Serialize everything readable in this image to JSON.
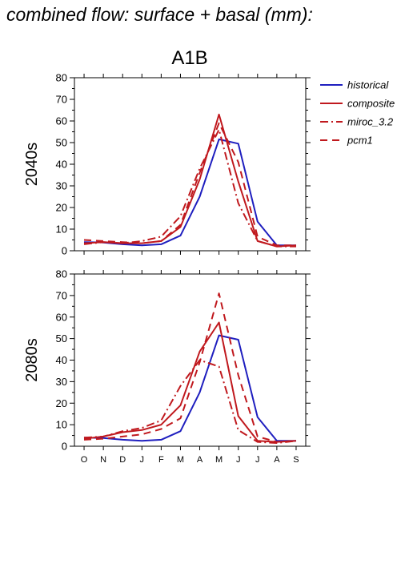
{
  "title": "combined flow: surface + basal (mm):",
  "scenario": "A1B",
  "colors": {
    "historical": "#1f1fbf",
    "model": "#c0191e",
    "axis": "#000000"
  },
  "legend": [
    {
      "key": "historical",
      "label": "historical",
      "color": "#1f1fbf",
      "dash": ""
    },
    {
      "key": "composite",
      "label": "composite",
      "color": "#c0191e",
      "dash": ""
    },
    {
      "key": "miroc",
      "label": "miroc_3.2",
      "color": "#c0191e",
      "dash": "10 4 2 4"
    },
    {
      "key": "pcm1",
      "label": "pcm1",
      "color": "#c0191e",
      "dash": "9 6"
    }
  ],
  "chart_data": [
    {
      "type": "line",
      "panel_label": "2040s",
      "categories": [
        "O",
        "N",
        "D",
        "J",
        "F",
        "M",
        "A",
        "M",
        "J",
        "J",
        "A",
        "S"
      ],
      "yticks": [
        0,
        10,
        20,
        30,
        40,
        50,
        60,
        70,
        80
      ],
      "ylim": [
        0,
        80
      ],
      "series": [
        {
          "name": "historical",
          "values": [
            4,
            3.8,
            3,
            2.5,
            3,
            7,
            25,
            51.5,
            49.5,
            13.5,
            2.5,
            2.5
          ]
        },
        {
          "name": "composite",
          "values": [
            3.5,
            4,
            3.5,
            3.5,
            4.5,
            11,
            33,
            63,
            32,
            4.5,
            2,
            2.5
          ]
        },
        {
          "name": "miroc_3.2",
          "values": [
            3,
            4,
            3.5,
            4.5,
            6.5,
            16,
            38,
            56,
            22,
            4.5,
            2,
            2
          ]
        },
        {
          "name": "pcm1",
          "values": [
            5,
            4.5,
            4,
            3.5,
            4.5,
            12,
            36,
            59,
            41,
            6.5,
            2.5,
            2.5
          ]
        }
      ]
    },
    {
      "type": "line",
      "panel_label": "2080s",
      "categories": [
        "O",
        "N",
        "D",
        "J",
        "F",
        "M",
        "A",
        "M",
        "J",
        "J",
        "A",
        "S"
      ],
      "yticks": [
        0,
        10,
        20,
        30,
        40,
        50,
        60,
        70,
        80
      ],
      "ylim": [
        0,
        80
      ],
      "series": [
        {
          "name": "historical",
          "values": [
            4,
            3.8,
            3,
            2.5,
            3,
            7,
            25,
            51.5,
            49.5,
            13.5,
            2.5,
            2.5
          ]
        },
        {
          "name": "composite",
          "values": [
            3.5,
            4.5,
            6.5,
            7.5,
            10,
            19,
            44,
            57.5,
            14,
            2.5,
            2,
            2.5
          ]
        },
        {
          "name": "miroc_3.2",
          "values": [
            4,
            4.5,
            7,
            8.5,
            12,
            28,
            40,
            37,
            7.5,
            2,
            1.5,
            2.5
          ]
        },
        {
          "name": "pcm1",
          "values": [
            3,
            3.5,
            4.5,
            5.5,
            8,
            13,
            39,
            71,
            33,
            4.5,
            2,
            2.5
          ]
        }
      ]
    }
  ]
}
